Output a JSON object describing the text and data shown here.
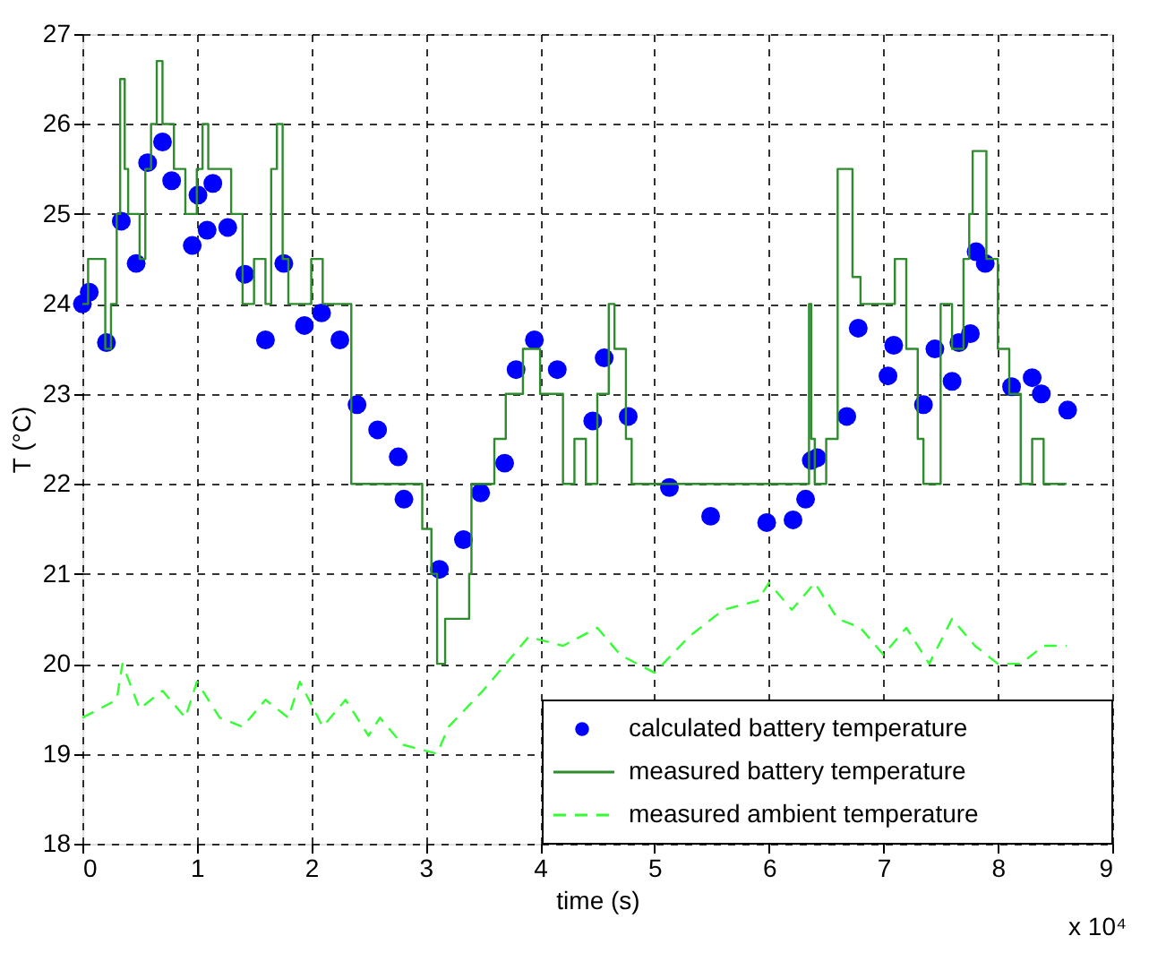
{
  "chart_data": {
    "type": "line",
    "xlabel": "time (s)",
    "ylabel": "T (°C)",
    "annotations": [
      "x 10⁴"
    ],
    "xlim": [
      0,
      9
    ],
    "xticks": [
      0,
      1,
      2,
      3,
      4,
      5,
      6,
      7,
      8,
      9
    ],
    "ylim": [
      18,
      27
    ],
    "yticks": [
      18,
      19,
      20,
      21,
      22,
      23,
      24,
      25,
      26,
      27
    ],
    "grid": true,
    "legend": "bottom right",
    "series": [
      {
        "name": "calculated battery temperature",
        "type": "scatter",
        "marker": "circle",
        "color": "#0000ff",
        "x": [
          0,
          0.06,
          0.21,
          0.34,
          0.47,
          0.57,
          0.7,
          0.78,
          0.96,
          1.01,
          1.09,
          1.14,
          1.27,
          1.42,
          1.6,
          1.76,
          1.94,
          2.09,
          2.25,
          2.4,
          2.58,
          2.76,
          2.81,
          3.12,
          3.33,
          3.48,
          3.69,
          3.79,
          3.95,
          4.15,
          4.46,
          4.56,
          4.77,
          5.13,
          5.49,
          5.98,
          6.21,
          6.32,
          6.37,
          6.42,
          6.68,
          6.78,
          7.04,
          7.09,
          7.35,
          7.45,
          7.6,
          7.66,
          7.76,
          7.81,
          7.89,
          8.12,
          8.3,
          8.38,
          8.61
        ],
        "values": [
          24.0,
          24.13,
          23.57,
          24.92,
          24.45,
          25.57,
          25.8,
          25.37,
          24.65,
          25.21,
          24.82,
          25.34,
          24.85,
          24.33,
          23.6,
          24.45,
          23.76,
          23.9,
          23.6,
          22.88,
          22.6,
          22.3,
          21.83,
          21.05,
          21.38,
          21.9,
          22.23,
          23.27,
          23.6,
          23.27,
          22.7,
          23.4,
          22.75,
          21.96,
          21.64,
          21.57,
          21.6,
          21.83,
          22.26,
          22.29,
          22.75,
          23.73,
          23.2,
          23.54,
          22.88,
          23.5,
          23.14,
          23.57,
          23.67,
          24.58,
          24.45,
          23.08,
          23.18,
          23.0,
          22.82
        ]
      },
      {
        "name": "measured battery temperature",
        "type": "step",
        "color": "#2e8b2e",
        "line_style": "solid",
        "x": [
          0,
          0.05,
          0.2,
          0.25,
          0.3,
          0.33,
          0.37,
          0.4,
          0.5,
          0.55,
          0.6,
          0.65,
          0.7,
          0.8,
          0.9,
          1.0,
          1.05,
          1.1,
          1.3,
          1.4,
          1.5,
          1.6,
          1.65,
          1.7,
          1.75,
          1.8,
          2.0,
          2.1,
          2.35,
          2.97,
          3.05,
          3.1,
          3.17,
          3.38,
          3.4,
          3.6,
          3.7,
          3.85,
          4.0,
          4.2,
          4.3,
          4.4,
          4.5,
          4.6,
          4.65,
          4.75,
          4.8,
          6.35,
          6.37,
          6.4,
          6.5,
          6.6,
          6.73,
          6.8,
          6.9,
          7.1,
          7.2,
          7.3,
          7.35,
          7.5,
          7.6,
          7.7,
          7.75,
          7.78,
          7.9,
          8.0,
          8.1,
          8.2,
          8.3,
          8.4,
          8.6
        ],
        "values": [
          24.0,
          24.5,
          23.5,
          24.0,
          25.0,
          26.5,
          25.5,
          25.0,
          24.5,
          25.5,
          26.0,
          26.7,
          26.0,
          25.5,
          25.0,
          25.5,
          26.0,
          25.5,
          25.0,
          24.0,
          24.5,
          24.0,
          25.5,
          26.0,
          24.5,
          24.0,
          24.5,
          24.0,
          22.0,
          21.5,
          21.0,
          20.0,
          20.5,
          21.0,
          22.0,
          22.5,
          23.0,
          23.5,
          23.0,
          22.0,
          22.5,
          22.0,
          23.0,
          24.0,
          23.5,
          22.5,
          22.0,
          24.0,
          22.5,
          22.0,
          22.5,
          25.5,
          24.3,
          24.0,
          24.0,
          24.5,
          23.5,
          22.5,
          22.0,
          24.0,
          23.5,
          24.5,
          25.0,
          25.7,
          24.5,
          23.5,
          23.0,
          22.0,
          22.5,
          22.0,
          22.0
        ]
      },
      {
        "name": "measured ambient temperature",
        "color": "#33ff33",
        "line_style": "dashed",
        "x": [
          0,
          0.3,
          0.35,
          0.5,
          0.7,
          0.9,
          1.0,
          1.2,
          1.4,
          1.6,
          1.8,
          1.9,
          2.1,
          2.3,
          2.5,
          2.6,
          2.8,
          3.1,
          3.2,
          3.5,
          3.7,
          3.9,
          4.2,
          4.5,
          4.7,
          5.0,
          5.3,
          5.6,
          5.9,
          6.0,
          6.2,
          6.4,
          6.6,
          6.8,
          7.0,
          7.2,
          7.4,
          7.6,
          7.8,
          8.0,
          8.2,
          8.4,
          8.6
        ],
        "values": [
          19.4,
          19.6,
          20.0,
          19.5,
          19.7,
          19.4,
          19.8,
          19.4,
          19.3,
          19.6,
          19.4,
          19.8,
          19.3,
          19.6,
          19.2,
          19.4,
          19.1,
          19.0,
          19.3,
          19.7,
          20.0,
          20.3,
          20.2,
          20.4,
          20.1,
          19.9,
          20.3,
          20.6,
          20.7,
          20.9,
          20.6,
          20.9,
          20.5,
          20.4,
          20.1,
          20.4,
          20.0,
          20.5,
          20.2,
          20.0,
          20.0,
          20.2,
          20.2
        ]
      }
    ]
  }
}
